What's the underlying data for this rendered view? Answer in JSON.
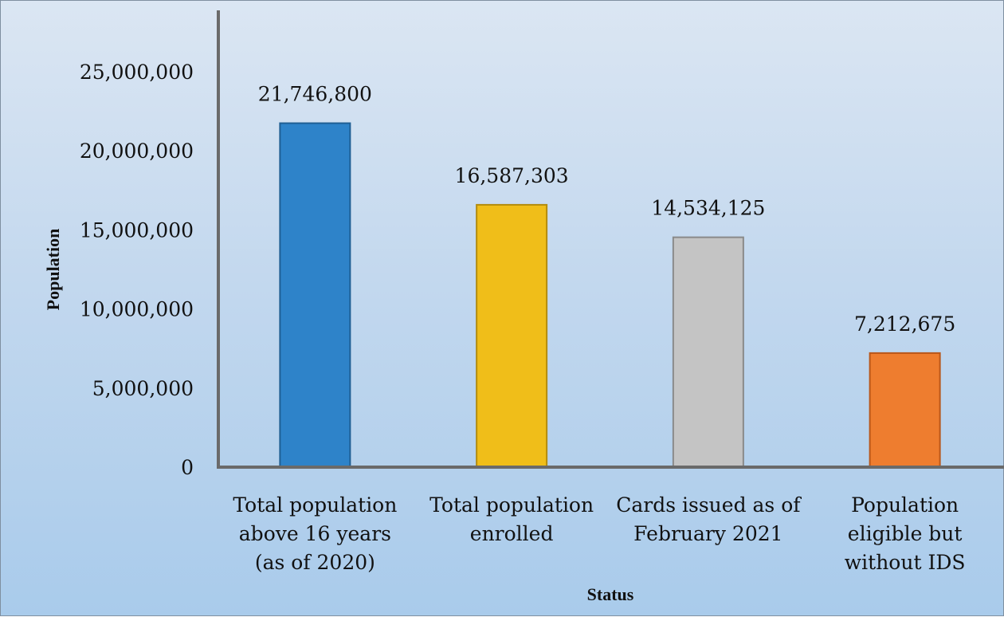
{
  "chart_data": {
    "type": "bar",
    "title": "",
    "xlabel": "Status",
    "ylabel": "Population",
    "ylim": [
      0,
      25000000
    ],
    "yticks": [
      "0",
      "5,000,000",
      "10,000,000",
      "15,000,000",
      "20,000,000",
      "25,000,000"
    ],
    "categories": [
      [
        "Total population",
        "above 16 years",
        "(as of 2020)"
      ],
      [
        "Total population",
        "enrolled"
      ],
      [
        "Cards issued as of",
        "February 2021"
      ],
      [
        "Population",
        "eligible but",
        "without IDS"
      ]
    ],
    "values": [
      21746800,
      16587303,
      14534125,
      7212675
    ],
    "data_labels": [
      "21,746,800",
      "16,587,303",
      "14,534,125",
      "7,212,675"
    ],
    "colors": [
      "#2e83c9",
      "#f0be19",
      "#c4c4c4",
      "#ee7d2f"
    ],
    "border_colors": [
      "#1f5f94",
      "#b38c0e",
      "#8a8a8a",
      "#b9571a"
    ],
    "grid": false,
    "legend": "none"
  }
}
